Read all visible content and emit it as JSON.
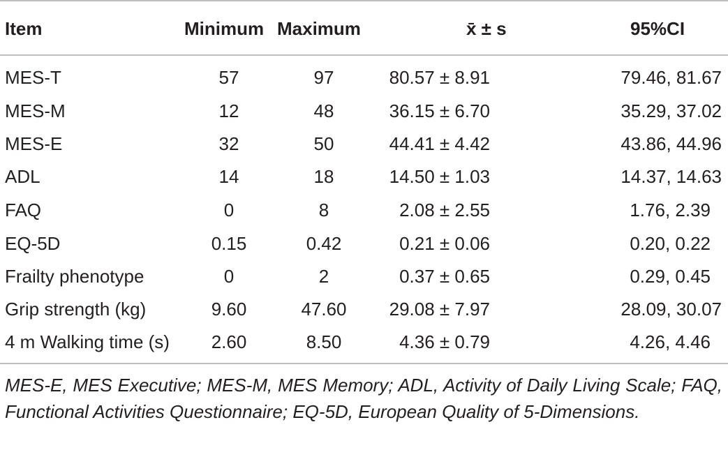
{
  "table": {
    "headers": {
      "item": "Item",
      "minimum": "Minimum",
      "maximum": "Maximum",
      "mean_sd": "x̄ ± s",
      "ci": "95%CI"
    },
    "rows": [
      {
        "item": "MES-T",
        "minimum": "57",
        "maximum": "97",
        "mean_sd": "80.57 ± 8.91",
        "ci": "79.46, 81.67"
      },
      {
        "item": "MES-M",
        "minimum": "12",
        "maximum": "48",
        "mean_sd": "36.15 ± 6.70",
        "ci": "35.29, 37.02"
      },
      {
        "item": "MES-E",
        "minimum": "32",
        "maximum": "50",
        "mean_sd": "44.41 ± 4.42",
        "ci": "43.86, 44.96"
      },
      {
        "item": "ADL",
        "minimum": "14",
        "maximum": "18",
        "mean_sd": "14.50 ± 1.03",
        "ci": "14.37, 14.63"
      },
      {
        "item": "FAQ",
        "minimum": "0",
        "maximum": "8",
        "mean_sd": "2.08 ± 2.55",
        "ci": "1.76, 2.39"
      },
      {
        "item": "EQ-5D",
        "minimum": "0.15",
        "maximum": "0.42",
        "mean_sd": "0.21 ± 0.06",
        "ci": "0.20, 0.22"
      },
      {
        "item": "Frailty phenotype",
        "minimum": "0",
        "maximum": "2",
        "mean_sd": "0.37 ± 0.65",
        "ci": "0.29, 0.45"
      },
      {
        "item": "Grip strength (kg)",
        "minimum": "9.60",
        "maximum": "47.60",
        "mean_sd": "29.08 ± 7.97",
        "ci": "28.09, 30.07"
      },
      {
        "item": "4 m Walking time (s)",
        "minimum": "2.60",
        "maximum": "8.50",
        "mean_sd": "4.36 ± 0.79",
        "ci": "4.26, 4.46"
      }
    ],
    "footnote": "MES-E, MES Executive; MES-M, MES Memory; ADL, Activity of Daily Living Scale; FAQ, Functional Activities Questionnaire; EQ-5D, European Quality of 5-Dimensions."
  }
}
